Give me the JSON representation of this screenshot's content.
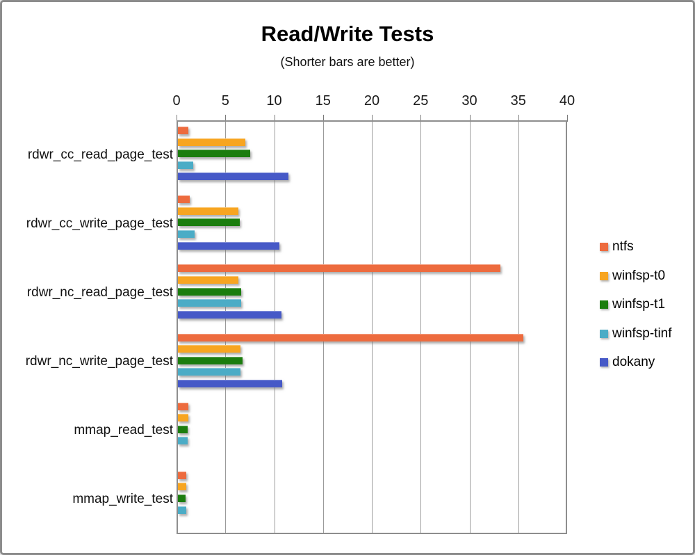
{
  "header": {
    "title": "Read/Write Tests",
    "subtitle": "(Shorter bars are better)"
  },
  "chart_data": {
    "type": "bar",
    "orientation": "horizontal",
    "title": "Read/Write Tests",
    "subtitle": "(Shorter bars are better)",
    "axis_position": "top",
    "grid": "vertical",
    "legend_position": "right",
    "xlabel": "",
    "ylabel": "",
    "xlim": [
      0,
      40
    ],
    "x_tick_step": 5,
    "x_tick_labels": [
      "0",
      "5",
      "10",
      "15",
      "20",
      "25",
      "30",
      "35",
      "40"
    ],
    "categories": [
      "rdwr_cc_read_page_test",
      "rdwr_cc_write_page_test",
      "rdwr_nc_read_page_test",
      "rdwr_nc_write_page_test",
      "mmap_read_test",
      "mmap_write_test"
    ],
    "series": [
      {
        "name": "ntfs",
        "color": "#ED6B3E",
        "values": [
          1.1,
          1.2,
          33.0,
          35.4,
          1.1,
          0.85
        ]
      },
      {
        "name": "winfsp-t0",
        "color": "#F7A521",
        "values": [
          6.9,
          6.2,
          6.2,
          6.4,
          1.1,
          0.85
        ]
      },
      {
        "name": "winfsp-t1",
        "color": "#1B7D0E",
        "values": [
          7.4,
          6.3,
          6.5,
          6.6,
          1.0,
          0.8
        ]
      },
      {
        "name": "winfsp-tinf",
        "color": "#4BACC6",
        "values": [
          1.6,
          1.7,
          6.5,
          6.4,
          1.0,
          0.85
        ]
      },
      {
        "name": "dokany",
        "color": "#4659C7",
        "values": [
          11.3,
          10.4,
          10.6,
          10.7,
          0,
          0
        ]
      }
    ]
  },
  "colors": {
    "gridline": "#9b9b9b",
    "plot_border": "#8e8e8e",
    "frame_border": "#8c8c8c",
    "background": "#ffffff",
    "text": "#000000"
  }
}
